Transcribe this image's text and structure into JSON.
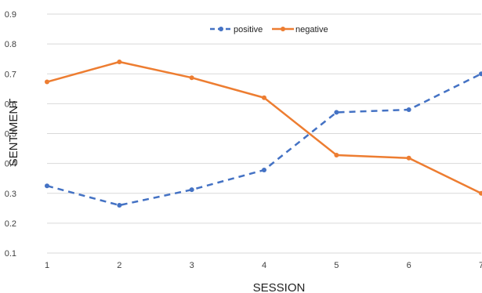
{
  "chart_data": {
    "type": "line",
    "x": [
      1,
      2,
      3,
      4,
      5,
      6,
      7
    ],
    "x_tick_labels": [
      "1",
      "2",
      "3",
      "4",
      "5",
      "6",
      "7"
    ],
    "xlabel": "SESSION",
    "ylabel": "SENTIMENT",
    "ylim": [
      0.1,
      0.9
    ],
    "y_ticks": [
      "0.1",
      "0.2",
      "0.3",
      "0.4",
      "0.5",
      "0.6",
      "0.7",
      "0.8",
      "0.9"
    ],
    "grid": "horizontal",
    "legend_position": "top-center",
    "series": [
      {
        "name": "positive",
        "color": "#4472c4",
        "style": "dashed",
        "values": [
          0.325,
          0.26,
          0.312,
          0.378,
          0.571,
          0.58,
          0.7
        ]
      },
      {
        "name": "negative",
        "color": "#ed7d31",
        "style": "solid",
        "values": [
          0.673,
          0.74,
          0.687,
          0.62,
          0.428,
          0.418,
          0.3
        ]
      }
    ]
  }
}
